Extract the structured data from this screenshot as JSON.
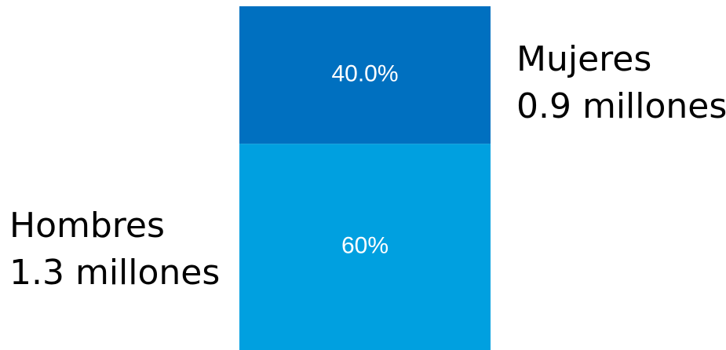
{
  "chart_data": {
    "type": "bar",
    "stacked": true,
    "categories": [
      ""
    ],
    "series": [
      {
        "name": "Hombres",
        "value_millions": 1.3,
        "percent": 60,
        "data_label": "60%",
        "side_label": [
          "Hombres",
          "1.3 millones"
        ],
        "color": "#00A0E0"
      },
      {
        "name": "Mujeres",
        "value_millions": 0.9,
        "percent": 40.0,
        "data_label": "40.0%",
        "side_label": [
          "Mujeres",
          "0.9 millones"
        ],
        "color": "#0070C0"
      }
    ],
    "ylim": [
      0,
      100
    ],
    "grid": false,
    "legend": "none"
  }
}
